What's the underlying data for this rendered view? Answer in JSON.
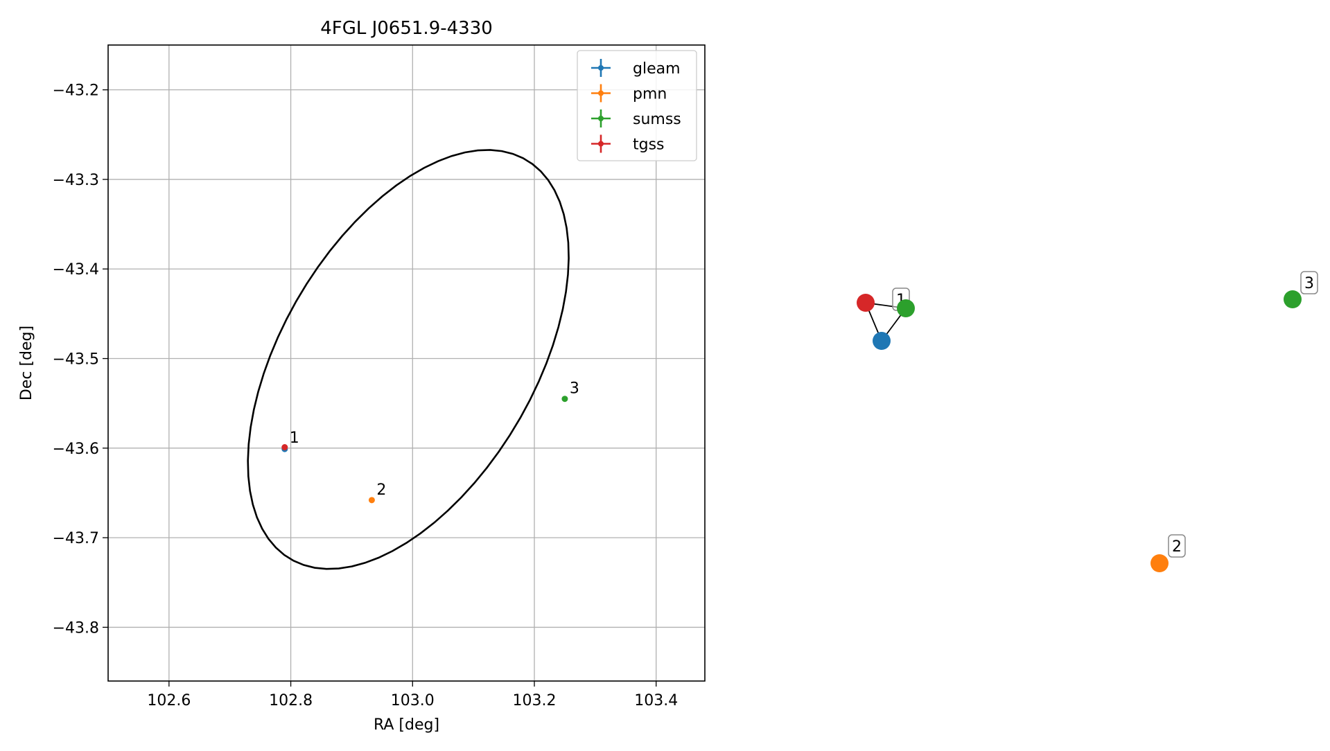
{
  "chart_data": [
    {
      "type": "scatter",
      "title": "4FGL J0651.9-4330",
      "xlabel": "RA [deg]",
      "ylabel": "Dec [deg]",
      "xlim": [
        102.5,
        103.48
      ],
      "ylim": [
        -43.86,
        -43.15
      ],
      "xticks": [
        102.6,
        102.8,
        103.0,
        103.2,
        103.4
      ],
      "xtick_labels": [
        "102.6",
        "102.8",
        "103.0",
        "103.2",
        "103.4"
      ],
      "yticks": [
        -43.2,
        -43.3,
        -43.4,
        -43.5,
        -43.6,
        -43.7,
        -43.8
      ],
      "ytick_labels": [
        "−43.2",
        "−43.3",
        "−43.4",
        "−43.5",
        "−43.6",
        "−43.7",
        "−43.8"
      ],
      "grid": true,
      "legend_position": "top-right",
      "series": [
        {
          "name": "gleam",
          "color": "#1f77b4",
          "points": [
            {
              "x": 102.79,
              "y": -43.601
            }
          ]
        },
        {
          "name": "pmn",
          "color": "#ff7f0e",
          "points": [
            {
              "x": 102.933,
              "y": -43.658
            }
          ]
        },
        {
          "name": "sumss",
          "color": "#2ca02c",
          "points": [
            {
              "x": 103.25,
              "y": -43.545
            }
          ]
        },
        {
          "name": "tgss",
          "color": "#d62728",
          "points": [
            {
              "x": 102.79,
              "y": -43.599
            }
          ]
        }
      ],
      "ellipse": {
        "center": [
          102.993,
          -43.501
        ],
        "semi_a": 0.3055,
        "semi_b": 0.1755,
        "angle_deg": 38.2,
        "color": "#000000"
      },
      "annotations": [
        {
          "text": "1",
          "x": 102.79,
          "y": -43.6
        },
        {
          "text": "2",
          "x": 102.933,
          "y": -43.658
        },
        {
          "text": "3",
          "x": 103.25,
          "y": -43.545
        }
      ]
    },
    {
      "type": "graph",
      "nodes": [
        {
          "id": "tgss-1",
          "color": "#d62728"
        },
        {
          "id": "sumss-1",
          "color": "#2ca02c"
        },
        {
          "id": "gleam-1",
          "color": "#1f77b4"
        },
        {
          "id": "pmn-2",
          "color": "#ff7f0e"
        },
        {
          "id": "sumss-3",
          "color": "#2ca02c"
        }
      ],
      "edges": [
        [
          "tgss-1",
          "sumss-1"
        ],
        [
          "tgss-1",
          "gleam-1"
        ],
        [
          "sumss-1",
          "gleam-1"
        ]
      ],
      "labels": [
        {
          "text": "1",
          "node": "sumss-1"
        },
        {
          "text": "2",
          "node": "pmn-2"
        },
        {
          "text": "3",
          "node": "sumss-3"
        }
      ]
    }
  ]
}
